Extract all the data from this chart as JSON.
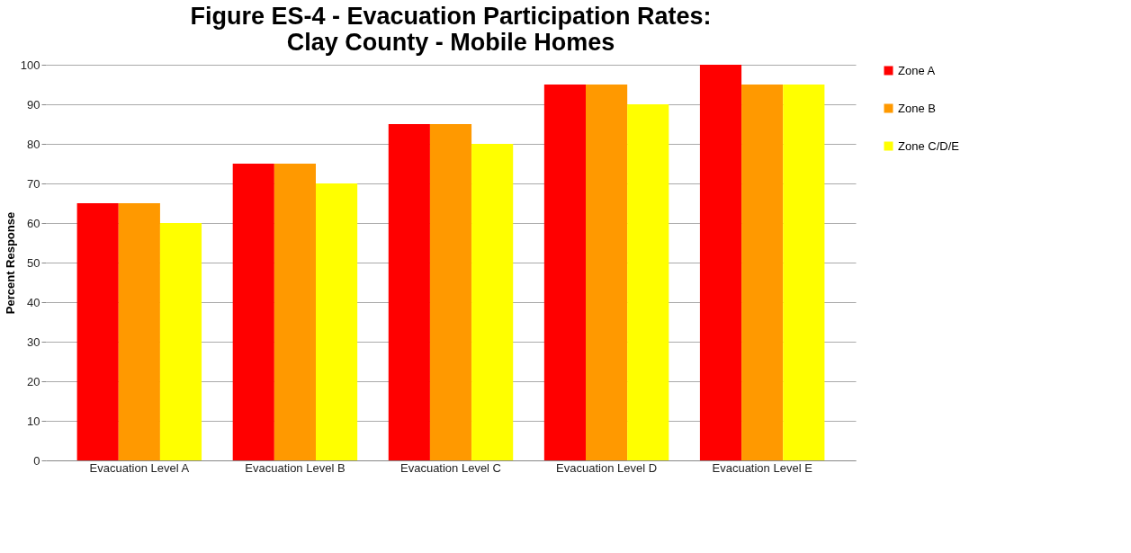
{
  "chart_data": {
    "type": "bar",
    "title": "Figure ES-4 - Evacuation Participation Rates: Clay County - Mobile Homes",
    "ylabel": "Percent Response",
    "categories": [
      "Evacuation Level A",
      "Evacuation Level B",
      "Evacuation Level C",
      "Evacuation Level D",
      "Evacuation Level E"
    ],
    "series": [
      {
        "name": "Zone A",
        "color": "#ff0000",
        "values": [
          65,
          75,
          85,
          95,
          100
        ]
      },
      {
        "name": "Zone B",
        "color": "#ff9900",
        "values": [
          65,
          75,
          85,
          95,
          95
        ]
      },
      {
        "name": "Zone C/D/E",
        "color": "#ffff00",
        "values": [
          60,
          70,
          80,
          90,
          95
        ]
      }
    ],
    "ylim": [
      0,
      100
    ],
    "yticks": [
      0,
      10,
      20,
      30,
      40,
      50,
      60,
      70,
      80,
      90,
      100
    ],
    "grid": "y",
    "legend": "right"
  }
}
